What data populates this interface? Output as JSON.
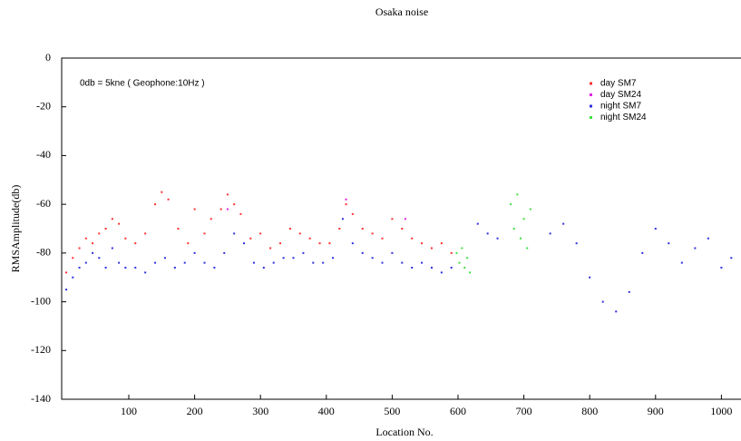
{
  "chart_data": {
    "type": "scatter",
    "title": "Osaka noise",
    "xlabel": "Location No.",
    "ylabel": "RMSAmplitude(db)",
    "annotation": "0db = 5kne ( Geophone:10Hz )",
    "xlim": [
      0,
      1027
    ],
    "ylim": [
      -140,
      0
    ],
    "xticks": [
      100,
      200,
      300,
      400,
      500,
      600,
      700,
      800,
      900,
      1000
    ],
    "yticks": [
      0,
      -20,
      -40,
      -60,
      -80,
      -100,
      -120,
      -140
    ],
    "legend": "upper right",
    "series": [
      {
        "name": "day SM7",
        "color": "#ff3030",
        "x": [
          5,
          15,
          25,
          35,
          45,
          55,
          65,
          75,
          85,
          95,
          110,
          125,
          140,
          150,
          160,
          175,
          190,
          200,
          215,
          225,
          240,
          250,
          260,
          270,
          285,
          300,
          315,
          330,
          345,
          360,
          375,
          390,
          405,
          420,
          430,
          440,
          455,
          470,
          485,
          500,
          515,
          530,
          545,
          560,
          575,
          590
        ],
        "values": [
          -88,
          -82,
          -78,
          -74,
          -76,
          -72,
          -70,
          -66,
          -68,
          -74,
          -76,
          -72,
          -60,
          -55,
          -58,
          -70,
          -76,
          -62,
          -72,
          -66,
          -62,
          -56,
          -60,
          -64,
          -74,
          -72,
          -78,
          -76,
          -70,
          -72,
          -74,
          -76,
          -76,
          -70,
          -60,
          -64,
          -70,
          -72,
          -74,
          -66,
          -70,
          -74,
          -76,
          -78,
          -76,
          -80
        ]
      },
      {
        "name": "day SM24",
        "color": "#e020e0",
        "x": [
          250,
          430,
          520
        ],
        "values": [
          -62,
          -58,
          -66
        ]
      },
      {
        "name": "night SM7",
        "color": "#3030e0",
        "x": [
          5,
          15,
          25,
          35,
          45,
          55,
          65,
          75,
          85,
          95,
          110,
          125,
          140,
          155,
          170,
          185,
          200,
          215,
          230,
          245,
          260,
          275,
          290,
          305,
          320,
          335,
          350,
          365,
          380,
          395,
          410,
          425,
          440,
          455,
          470,
          485,
          500,
          515,
          530,
          545,
          560,
          575,
          590,
          630,
          645,
          660,
          740,
          760,
          780,
          800,
          820,
          840,
          860,
          880,
          900,
          920,
          940,
          960,
          980,
          1000,
          1015
        ],
        "values": [
          -95,
          -90,
          -86,
          -84,
          -80,
          -82,
          -86,
          -78,
          -84,
          -86,
          -86,
          -88,
          -84,
          -82,
          -86,
          -84,
          -80,
          -84,
          -86,
          -80,
          -72,
          -76,
          -84,
          -86,
          -84,
          -82,
          -82,
          -80,
          -84,
          -84,
          -82,
          -66,
          -76,
          -80,
          -82,
          -84,
          -80,
          -84,
          -86,
          -84,
          -86,
          -88,
          -86,
          -68,
          -72,
          -74,
          -72,
          -68,
          -76,
          -90,
          -100,
          -104,
          -96,
          -80,
          -70,
          -76,
          -84,
          -78,
          -74,
          -86,
          -82
        ]
      },
      {
        "name": "night SM24",
        "color": "#40e040",
        "x": [
          598,
          602,
          606,
          610,
          614,
          618,
          680,
          685,
          690,
          695,
          700,
          705,
          710
        ],
        "values": [
          -80,
          -84,
          -78,
          -86,
          -82,
          -88,
          -60,
          -70,
          -56,
          -74,
          -66,
          -78,
          -62
        ]
      }
    ]
  }
}
